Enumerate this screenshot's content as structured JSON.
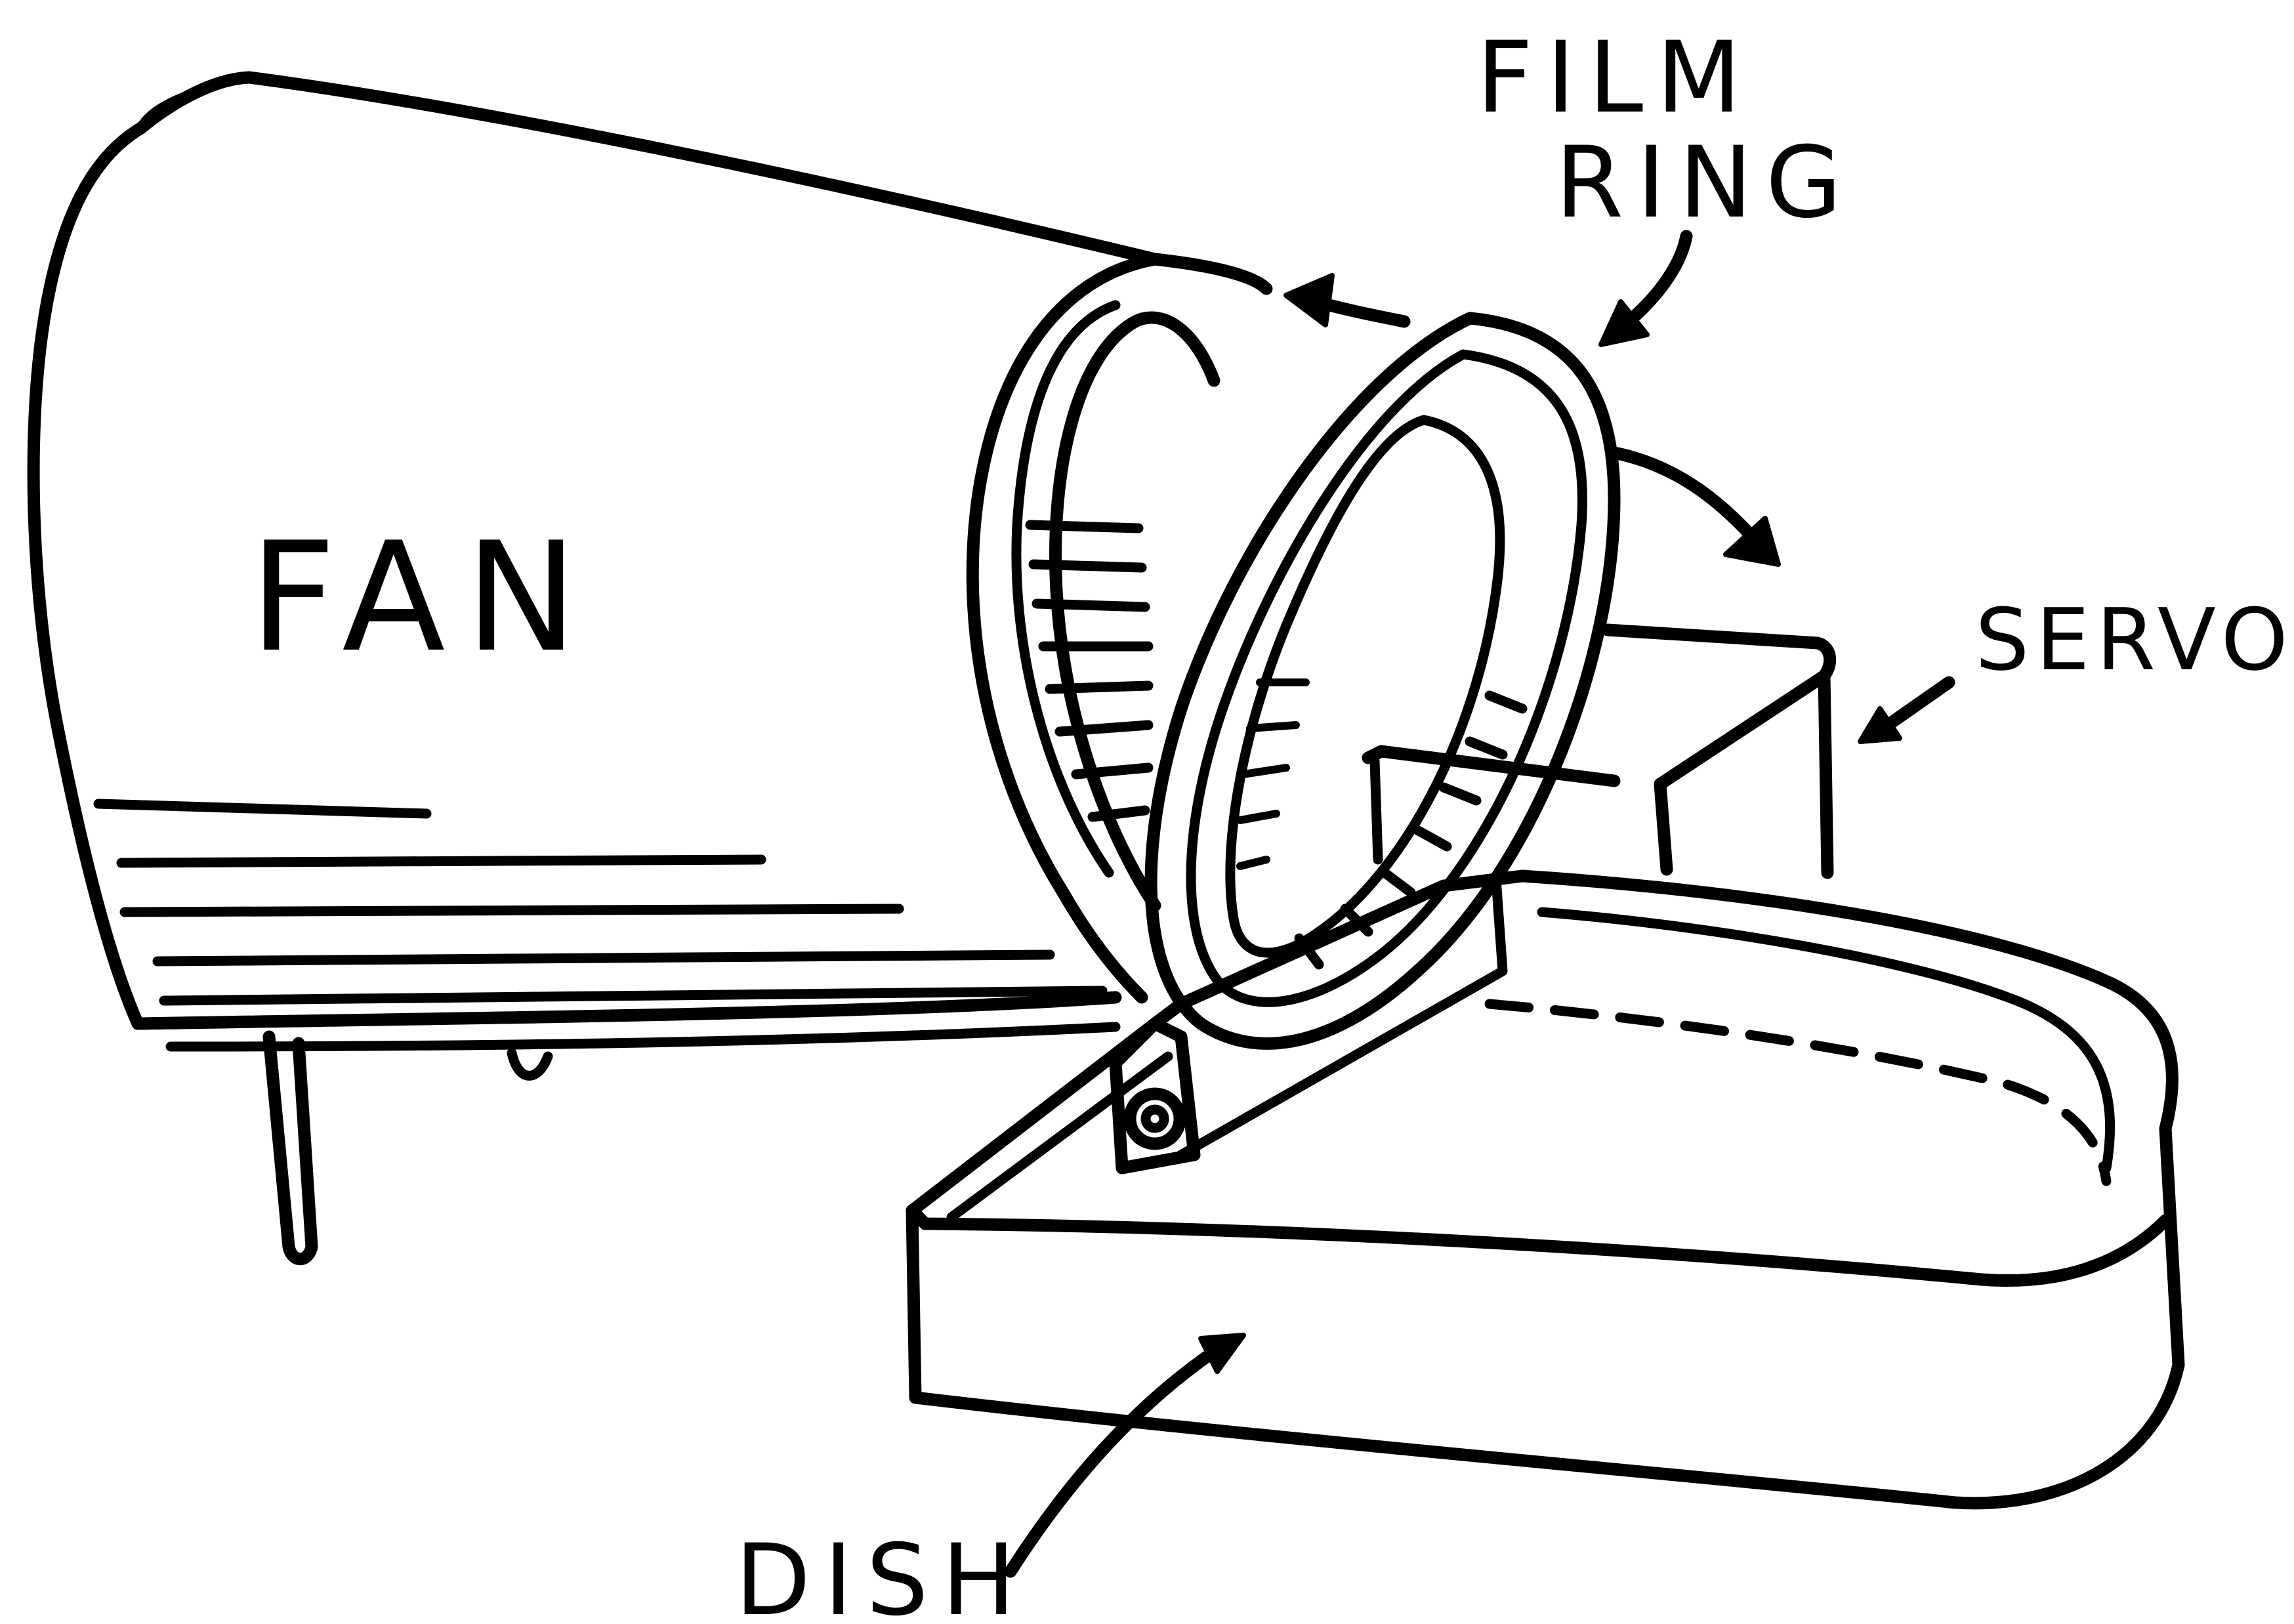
{
  "labels": {
    "fan": "FAN",
    "film_line1": "FILM",
    "film_line2": "RING",
    "servo": "SERVO",
    "dish": "DISH"
  },
  "colors": {
    "ink": "#000000",
    "paper": "#ffffff"
  }
}
